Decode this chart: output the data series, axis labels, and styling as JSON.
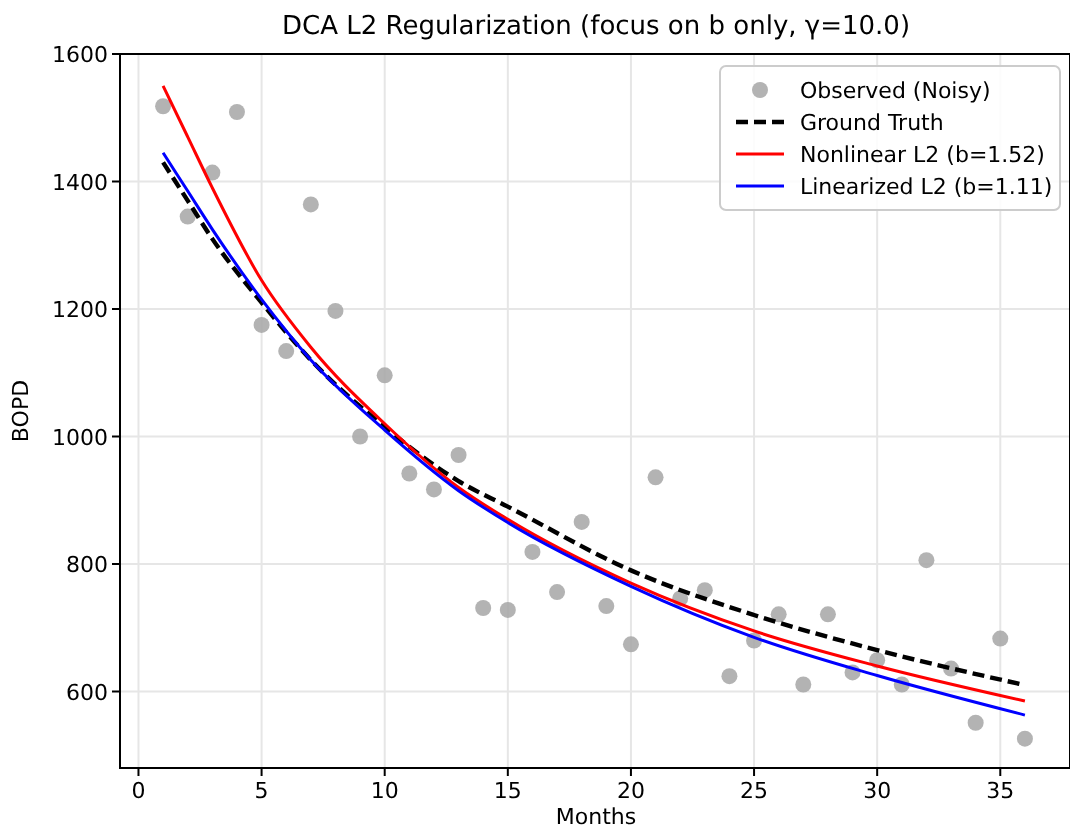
{
  "chart_data": {
    "type": "scatter",
    "title": "DCA L2 Regularization (focus on b only, γ=10.0)",
    "xlabel": "Months",
    "ylabel": "BOPD",
    "xlim": [
      -0.75,
      37.75
    ],
    "ylim": [
      480,
      1600
    ],
    "xticks": [
      0,
      5,
      10,
      15,
      20,
      25,
      30,
      35
    ],
    "yticks": [
      600,
      800,
      1000,
      1200,
      1400,
      1600
    ],
    "grid": true,
    "legend": "top right",
    "series": [
      {
        "name": "Observed (Noisy)",
        "marker": "circle",
        "color": "#a6a6a6",
        "x": [
          1,
          2,
          3,
          4,
          5,
          6,
          7,
          8,
          9,
          10,
          11,
          12,
          13,
          14,
          15,
          16,
          17,
          18,
          19,
          20,
          21,
          22,
          23,
          24,
          25,
          26,
          27,
          28,
          29,
          30,
          31,
          32,
          33,
          34,
          35,
          36
        ],
        "values": [
          1518,
          1345,
          1414,
          1509,
          1175,
          1134,
          1364,
          1197,
          1000,
          1096,
          942,
          917,
          971,
          731,
          728,
          819,
          756,
          866,
          734,
          674,
          936,
          746,
          759,
          624,
          680,
          721,
          611,
          721,
          630,
          649,
          611,
          806,
          636,
          551,
          683,
          526
        ]
      },
      {
        "name": "Ground Truth",
        "type": "line",
        "line_style": "dashed",
        "color": "#000000",
        "x": [
          1,
          2,
          3,
          5,
          7,
          10,
          13,
          15,
          20,
          25,
          30,
          36
        ],
        "values": [
          1430,
          1370,
          1310,
          1210,
          1120,
          1015,
          930,
          890,
          790,
          720,
          665,
          610
        ]
      },
      {
        "name": "Nonlinear L2 (b=1.52)",
        "type": "line",
        "line_style": "solid",
        "color": "#ff0000",
        "x": [
          1,
          2,
          3,
          5,
          7,
          10,
          13,
          15,
          20,
          25,
          30,
          36
        ],
        "values": [
          1550,
          1470,
          1390,
          1245,
          1140,
          1020,
          920,
          870,
          770,
          695,
          640,
          585
        ]
      },
      {
        "name": "Linearized L2 (b=1.11)",
        "type": "line",
        "line_style": "solid",
        "color": "#0000ff",
        "x": [
          1,
          2,
          3,
          5,
          7,
          10,
          13,
          15,
          20,
          25,
          30,
          36
        ],
        "values": [
          1445,
          1385,
          1325,
          1215,
          1120,
          1010,
          915,
          865,
          765,
          685,
          625,
          563
        ]
      }
    ]
  }
}
